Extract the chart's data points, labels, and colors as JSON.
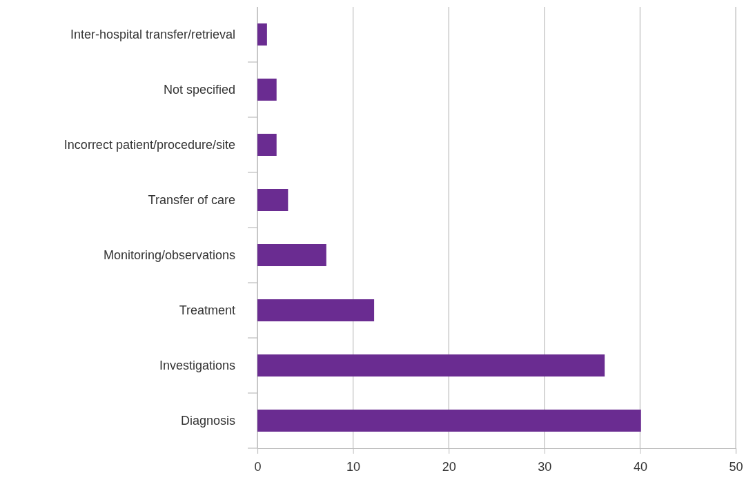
{
  "chart_data": {
    "type": "bar",
    "orientation": "horizontal",
    "categories": [
      "Inter-hospital transfer/retrieval",
      "Not specified",
      "Incorrect patient/procedure/site",
      "Transfer of care",
      "Monitoring/observations",
      "Treatment",
      "Investigations",
      "Diagnosis"
    ],
    "values": [
      1.0,
      2.0,
      2.0,
      3.2,
      7.2,
      12.2,
      36.3,
      40.1
    ],
    "color": "#6a2c91",
    "xlim": [
      0,
      50
    ],
    "xticks": [
      0,
      10,
      20,
      30,
      40,
      50
    ],
    "grid": "x"
  }
}
